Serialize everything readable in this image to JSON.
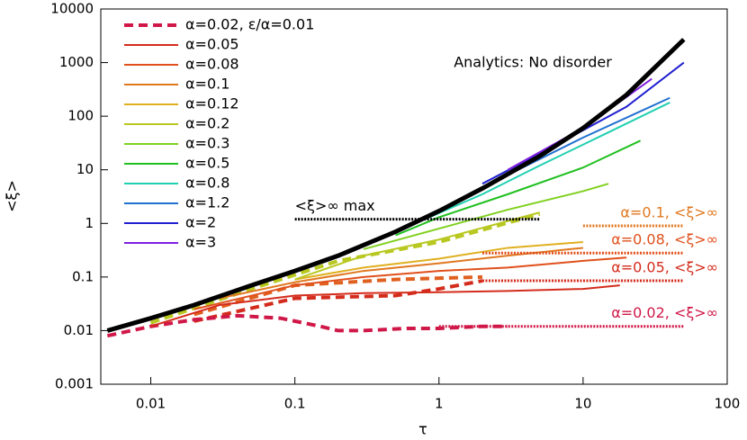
{
  "chart_data": {
    "type": "line",
    "xscale": "log",
    "yscale": "log",
    "x_label": "τ",
    "y_label": "<ξ>",
    "xlim": [
      0.0045,
      100
    ],
    "ylim": [
      0.001,
      10000
    ],
    "xticks": [
      0.01,
      0.1,
      1,
      10,
      100
    ],
    "yticks": [
      0.001,
      0.01,
      0.1,
      1,
      10,
      100,
      1000,
      10000
    ],
    "legend": "upper left",
    "series": [
      {
        "name": "α=0.02, ε/α=0.01",
        "color": "#d01848",
        "dash": true,
        "width": 4,
        "x": [
          0.005,
          0.01,
          0.02,
          0.04,
          0.08,
          0.15,
          0.2,
          0.3,
          0.6,
          1,
          2,
          3
        ],
        "values": [
          0.008,
          0.012,
          0.016,
          0.019,
          0.017,
          0.012,
          0.01,
          0.01,
          0.011,
          0.011,
          0.012,
          0.012
        ]
      },
      {
        "name": "α=0.05",
        "color": "#d42c1c",
        "width": 2,
        "x": [
          0.01,
          0.03,
          0.1,
          0.3,
          1,
          3,
          10,
          18
        ],
        "values": [
          0.012,
          0.03,
          0.045,
          0.05,
          0.052,
          0.055,
          0.06,
          0.07
        ]
      },
      {
        "name": "α=0.08",
        "color": "#e0501c",
        "width": 2,
        "x": [
          0.02,
          0.1,
          0.3,
          1,
          3,
          10,
          20
        ],
        "values": [
          0.025,
          0.07,
          0.1,
          0.13,
          0.15,
          0.2,
          0.23
        ]
      },
      {
        "name": "α=0.1",
        "color": "#e07820",
        "width": 2,
        "x": [
          0.03,
          0.1,
          0.3,
          1,
          3,
          10
        ],
        "values": [
          0.04,
          0.08,
          0.13,
          0.18,
          0.25,
          0.35
        ]
      },
      {
        "name": "α=0.12",
        "color": "#e0b020",
        "width": 2,
        "x": [
          0.1,
          0.3,
          1,
          3,
          10
        ],
        "values": [
          0.09,
          0.15,
          0.22,
          0.35,
          0.45
        ]
      },
      {
        "name": "α=0.2",
        "color": "#b8c820",
        "width": 2,
        "x": [
          0.1,
          0.3,
          1,
          5
        ],
        "values": [
          0.09,
          0.25,
          0.5,
          1.6
        ]
      },
      {
        "name": "α=0.3",
        "color": "#80d020",
        "width": 2,
        "x": [
          0.3,
          1,
          3,
          10,
          15
        ],
        "values": [
          0.33,
          0.8,
          1.8,
          4,
          5.5
        ]
      },
      {
        "name": "α=0.5",
        "color": "#20c020",
        "width": 2,
        "x": [
          0.5,
          1,
          3,
          10,
          25
        ],
        "values": [
          0.6,
          1.3,
          3.5,
          11,
          35
        ]
      },
      {
        "name": "α=0.8",
        "color": "#20d0b0",
        "width": 2,
        "x": [
          0.8,
          2,
          5,
          15,
          40
        ],
        "values": [
          1.2,
          3.5,
          12,
          50,
          180
        ]
      },
      {
        "name": "α=1.2",
        "color": "#2070d0",
        "width": 2,
        "x": [
          1.2,
          3,
          10,
          40
        ],
        "values": [
          2.3,
          8,
          40,
          220
        ]
      },
      {
        "name": "α=2",
        "color": "#2020d0",
        "width": 2,
        "x": [
          2,
          5,
          20,
          50
        ],
        "values": [
          5.5,
          20,
          150,
          1000
        ]
      },
      {
        "name": "α=3",
        "color": "#8020e0",
        "width": 2,
        "x": [
          3,
          10,
          30
        ],
        "values": [
          10,
          60,
          500
        ]
      }
    ],
    "extra_lines": [
      {
        "color": "#d42c1c",
        "dash": true,
        "width": 4,
        "x": [
          0.02,
          0.1,
          0.5,
          1,
          2
        ],
        "values": [
          0.015,
          0.04,
          0.045,
          0.06,
          0.085
        ]
      },
      {
        "color": "#e06020",
        "dash": true,
        "width": 4,
        "x": [
          0.02,
          0.1,
          0.5,
          1,
          2
        ],
        "values": [
          0.02,
          0.07,
          0.09,
          0.095,
          0.1
        ]
      },
      {
        "color": "#b8c820",
        "dash": true,
        "width": 4,
        "x": [
          0.01,
          0.05,
          0.2,
          1,
          5
        ],
        "values": [
          0.014,
          0.06,
          0.2,
          0.45,
          1.5
        ]
      }
    ],
    "analytic": {
      "name": "Analytics: No disorder",
      "color": "#000000",
      "width": 5,
      "x": [
        0.005,
        0.01,
        0.02,
        0.05,
        0.1,
        0.2,
        0.5,
        1,
        2,
        5,
        10,
        20,
        50
      ],
      "values": [
        0.01,
        0.017,
        0.03,
        0.07,
        0.13,
        0.25,
        0.7,
        1.7,
        4.5,
        18,
        60,
        250,
        2700
      ]
    },
    "limits": [
      {
        "label": "<ξ>∞ max",
        "color": "#000000",
        "value": 1.2,
        "x": [
          0.1,
          5
        ]
      },
      {
        "label": "α=0.1, <ξ>∞",
        "color": "#e07820",
        "value": 0.9,
        "x": [
          10,
          50
        ]
      },
      {
        "label": "α=0.08, <ξ>∞",
        "color": "#e0501c",
        "value": 0.28,
        "x": [
          2,
          50
        ]
      },
      {
        "label": "α=0.05, <ξ>∞",
        "color": "#d42c1c",
        "value": 0.085,
        "x": [
          2,
          50
        ]
      },
      {
        "label": "α=0.02, <ξ>∞",
        "color": "#d01848",
        "value": 0.012,
        "x": [
          1,
          50
        ]
      }
    ]
  }
}
